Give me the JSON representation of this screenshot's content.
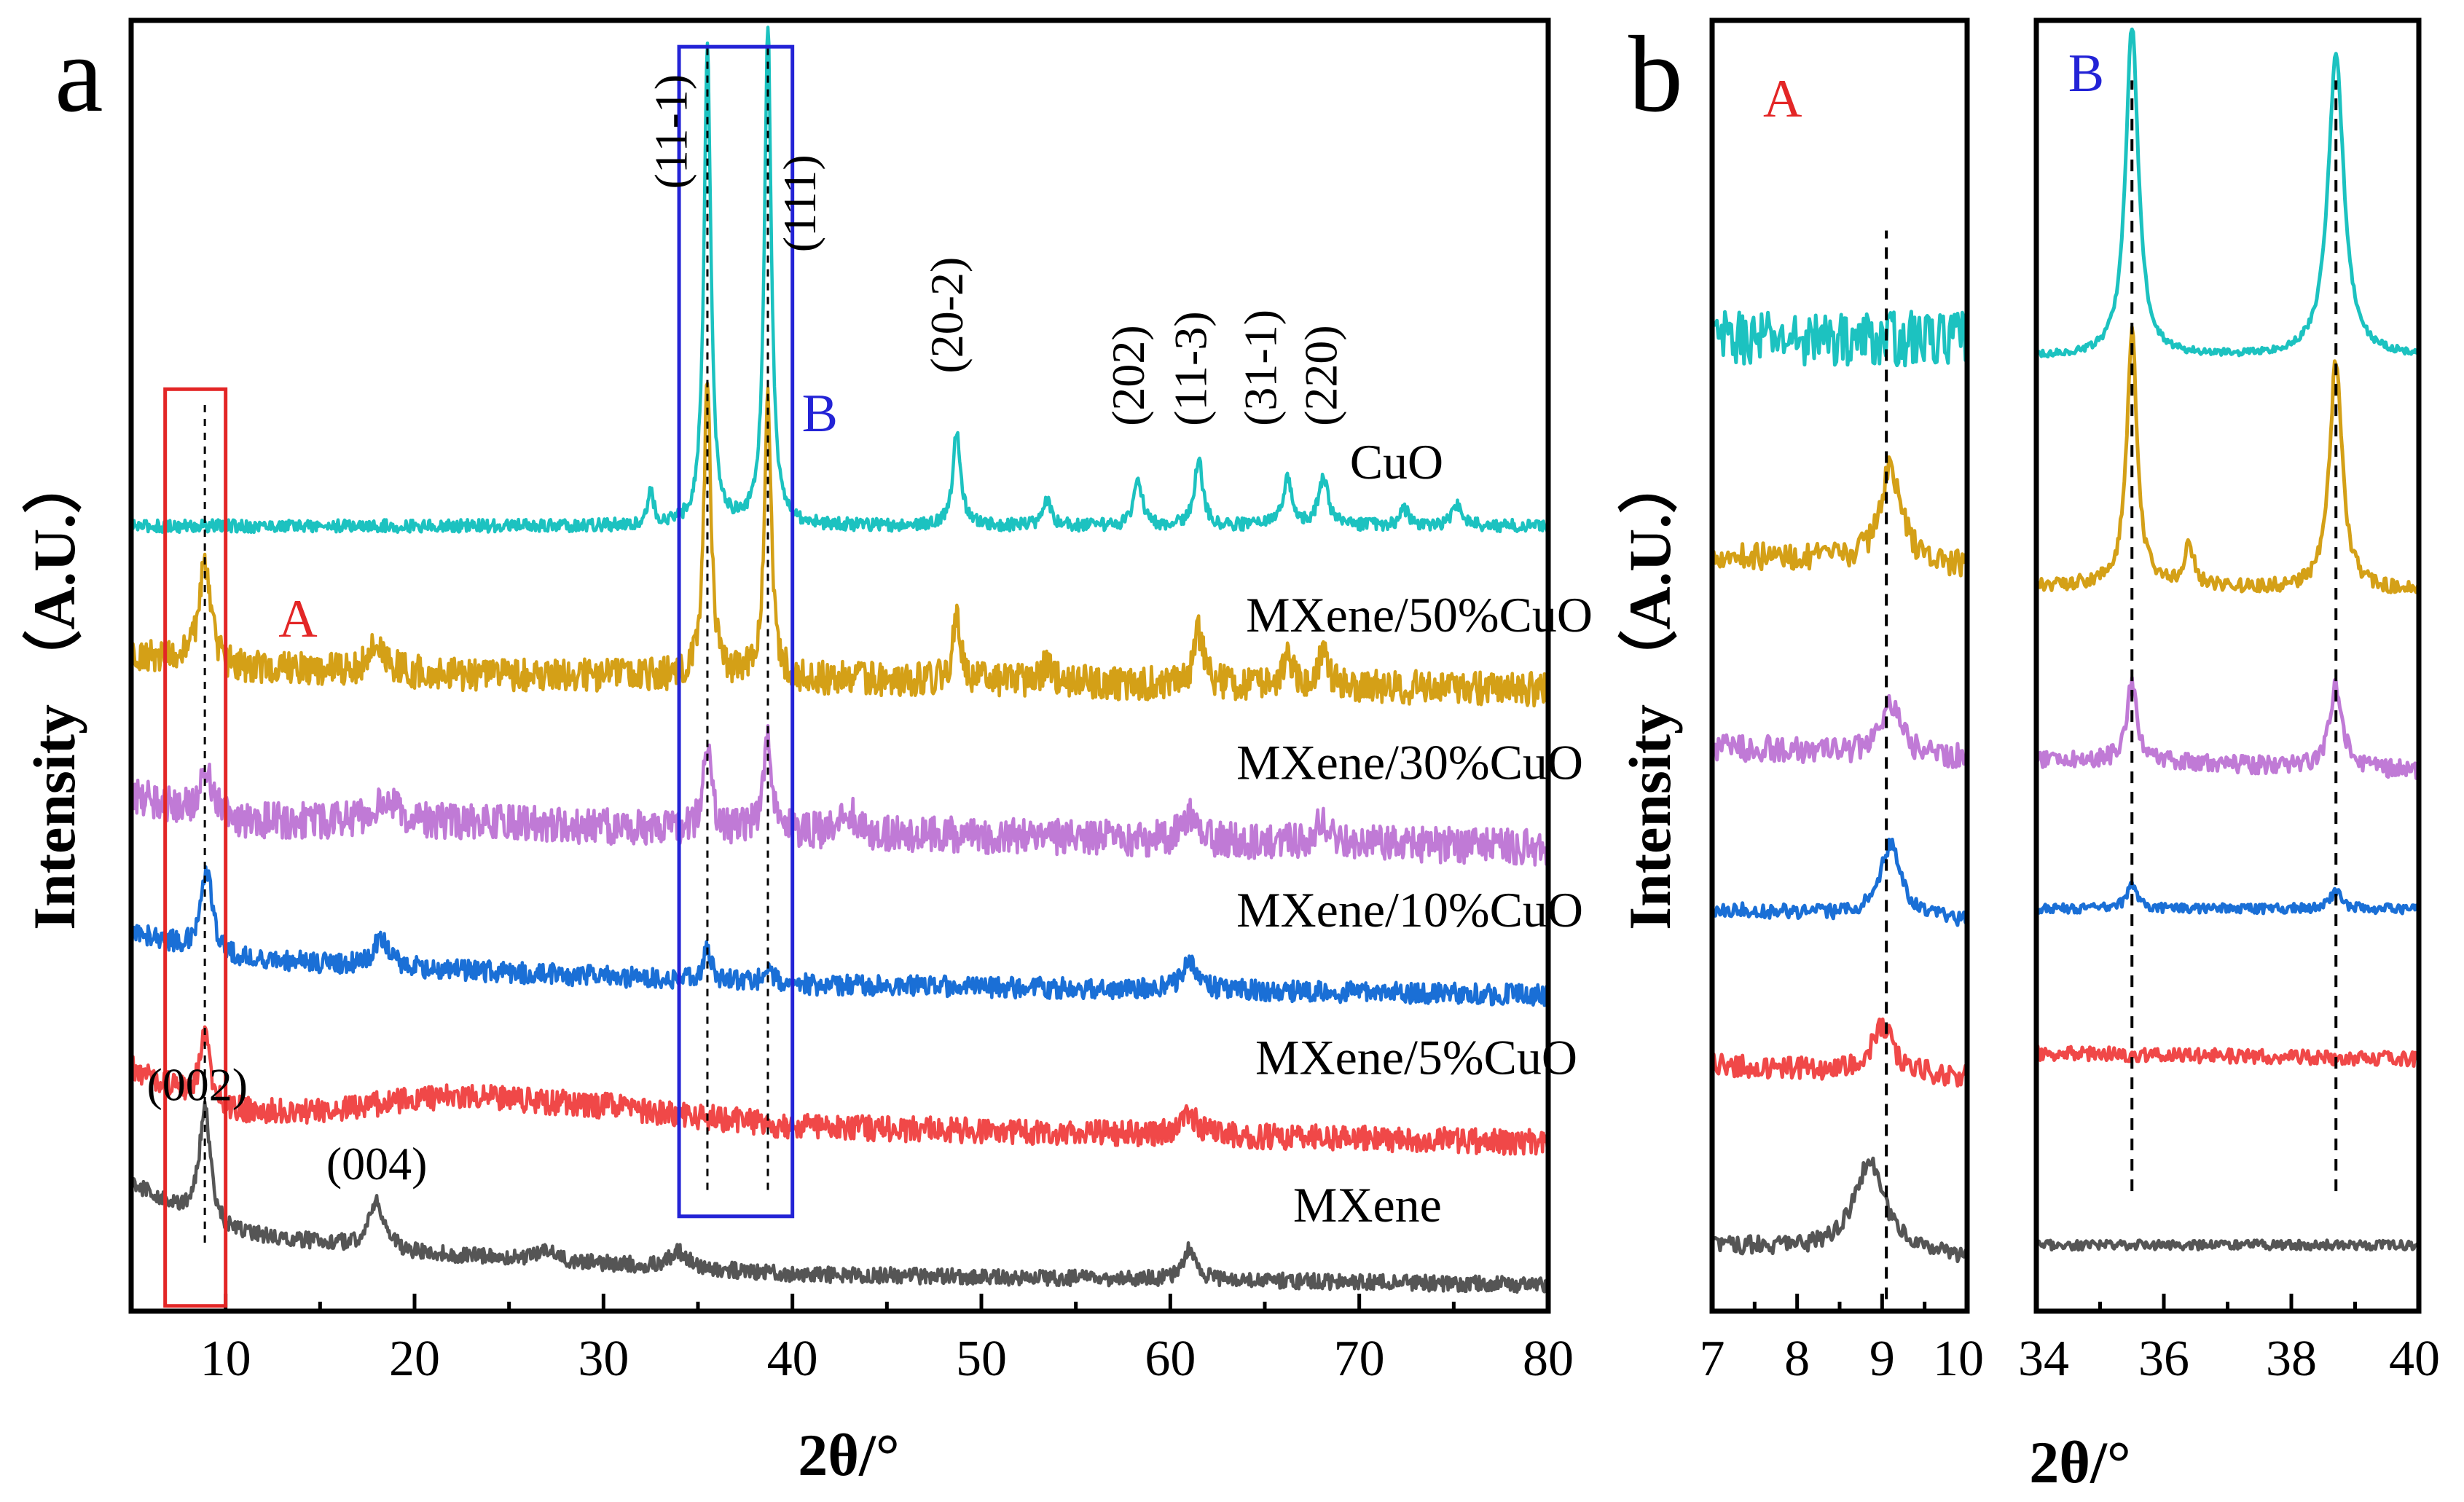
{
  "figure": {
    "panel_a_letter": "a",
    "panel_b_letter": "b",
    "colors": {
      "CuO": "#1cc2c0",
      "MXene/50%CuO": "#d4a017",
      "MXene/30%CuO": "#c07ad6",
      "MXene/10%CuO": "#1a6fd6",
      "MXene/5%CuO": "#f04848",
      "MXene": "#555555",
      "box_A": "#e32626",
      "box_B": "#2323d6"
    }
  },
  "chart_data": [
    {
      "panel": "a",
      "type": "line",
      "xlabel": "2θ/°",
      "ylabel": "Intensity （A.U.）",
      "xlim": [
        5,
        80
      ],
      "xticks": [
        10,
        20,
        30,
        40,
        50,
        60,
        70,
        80
      ],
      "y_units": "arbitrary, stacked with offsets",
      "series": [
        {
          "name": "CuO",
          "offset": 14.2,
          "background": [
            [
              5,
              0.2
            ],
            [
              80,
              0.2
            ]
          ],
          "peaks": [
            [
              32.5,
              0.6,
              0.2
            ],
            [
              35.5,
              9.0,
              0.22
            ],
            [
              38.7,
              9.5,
              0.22
            ],
            [
              48.7,
              1.8,
              0.25
            ],
            [
              53.5,
              0.5,
              0.25
            ],
            [
              58.3,
              0.9,
              0.25
            ],
            [
              61.5,
              1.3,
              0.25
            ],
            [
              66.2,
              0.9,
              0.3
            ],
            [
              68.1,
              0.9,
              0.3
            ],
            [
              72.4,
              0.3,
              0.3
            ],
            [
              75.2,
              0.4,
              0.3
            ]
          ],
          "noise": 0.12
        },
        {
          "name": "MXene/50%CuO",
          "offset": 11.2,
          "background": [
            [
              5,
              0.8
            ],
            [
              10,
              0.5
            ],
            [
              20,
              0.4
            ],
            [
              80,
              0.1
            ]
          ],
          "peaks": [
            [
              8.9,
              2.0,
              0.35
            ],
            [
              18.0,
              0.6,
              0.5
            ],
            [
              35.5,
              5.8,
              0.22
            ],
            [
              38.7,
              5.5,
              0.22
            ],
            [
              48.7,
              1.2,
              0.25
            ],
            [
              53.5,
              0.4,
              0.3
            ],
            [
              61.5,
              1.0,
              0.3
            ],
            [
              66.2,
              0.6,
              0.3
            ],
            [
              68.1,
              0.7,
              0.3
            ]
          ],
          "noise": 0.32
        },
        {
          "name": "MXene/30%CuO",
          "offset": 8.3,
          "background": [
            [
              5,
              1.0
            ],
            [
              10,
              0.5
            ],
            [
              20,
              0.5
            ],
            [
              40,
              0.3
            ],
            [
              80,
              0.0
            ]
          ],
          "peaks": [
            [
              9.0,
              0.9,
              0.4
            ],
            [
              18.5,
              0.4,
              0.6
            ],
            [
              35.5,
              1.6,
              0.25
            ],
            [
              38.7,
              1.8,
              0.25
            ],
            [
              43.0,
              0.4,
              0.4
            ],
            [
              61.0,
              0.5,
              0.4
            ],
            [
              68.0,
              0.4,
              0.4
            ]
          ],
          "noise": 0.34
        },
        {
          "name": "MXene/10%CuO",
          "offset": 5.5,
          "background": [
            [
              5,
              1.2
            ],
            [
              10,
              0.7
            ],
            [
              20,
              0.5
            ],
            [
              40,
              0.2
            ],
            [
              80,
              0.0
            ]
          ],
          "peaks": [
            [
              9.0,
              1.6,
              0.35
            ],
            [
              18.2,
              0.5,
              0.5
            ],
            [
              35.5,
              0.6,
              0.25
            ],
            [
              38.7,
              0.4,
              0.25
            ],
            [
              61.0,
              0.5,
              0.5
            ]
          ],
          "noise": 0.2
        },
        {
          "name": "MXene/5%CuO",
          "offset": 2.7,
          "background": [
            [
              5,
              1.4
            ],
            [
              10,
              0.6
            ],
            [
              15,
              0.6
            ],
            [
              22,
              0.9
            ],
            [
              30,
              0.7
            ],
            [
              40,
              0.3
            ],
            [
              80,
              0.0
            ]
          ],
          "peaks": [
            [
              8.9,
              1.2,
              0.35
            ],
            [
              61.0,
              0.4,
              0.5
            ]
          ],
          "noise": 0.24
        },
        {
          "name": "MXene",
          "offset": 0.0,
          "background": [
            [
              5,
              1.9
            ],
            [
              10,
              1.0
            ],
            [
              20,
              0.6
            ],
            [
              30,
              0.4
            ],
            [
              40,
              0.2
            ],
            [
              80,
              0.0
            ]
          ],
          "peaks": [
            [
              8.9,
              2.2,
              0.35
            ],
            [
              18.0,
              0.9,
              0.5
            ],
            [
              27.0,
              0.2,
              0.6
            ],
            [
              34.0,
              0.3,
              0.6
            ],
            [
              61.0,
              0.6,
              0.4
            ]
          ],
          "noise": 0.15
        }
      ],
      "series_labels": [
        {
          "text": "CuO",
          "x": 69.5,
          "y": 15.3
        },
        {
          "text": "MXene/50%CuO",
          "x": 64.0,
          "y": 12.4
        },
        {
          "text": "MXene/30%CuO",
          "x": 63.5,
          "y": 9.6
        },
        {
          "text": "MXene/10%CuO",
          "x": 63.5,
          "y": 6.8
        },
        {
          "text": "MXene/5%CuO",
          "x": 64.5,
          "y": 4.0
        },
        {
          "text": "MXene",
          "x": 66.5,
          "y": 1.2
        }
      ],
      "annotations": [
        {
          "text": "(002)",
          "x": 8.5,
          "y": 3.5,
          "rotated": false
        },
        {
          "text": "(004)",
          "x": 18.0,
          "y": 2.0,
          "rotated": false
        },
        {
          "text": "(11-1)",
          "x": 34.4,
          "y": 20.8,
          "rotated": true
        },
        {
          "text": "(111)",
          "x": 41.2,
          "y": 19.6,
          "rotated": true
        },
        {
          "text": "(20-2)",
          "x": 49.0,
          "y": 17.3,
          "rotated": true
        },
        {
          "text": "(202)",
          "x": 58.6,
          "y": 16.3,
          "rotated": true
        },
        {
          "text": "(11-3)",
          "x": 61.9,
          "y": 16.3,
          "rotated": true
        },
        {
          "text": "(31-1)",
          "x": 65.6,
          "y": 16.3,
          "rotated": true
        },
        {
          "text": "(220)",
          "x": 68.8,
          "y": 16.3,
          "rotated": true
        }
      ],
      "boxes": [
        {
          "label": "A",
          "x0": 6.8,
          "x1": 10.0,
          "y0": -0.4,
          "y1": 17.0,
          "label_x": 12.8,
          "label_y": 12.3
        },
        {
          "label": "B",
          "x0": 34.0,
          "x1": 40.0,
          "y0": 1.3,
          "y1": 23.5,
          "label_x": 40.5,
          "label_y": 16.2
        }
      ],
      "dashed_lines": [
        {
          "x": 8.9,
          "y0": 0.8,
          "y1": 16.8
        },
        {
          "x": 35.5,
          "y0": 1.8,
          "y1": 23.5
        },
        {
          "x": 38.7,
          "y0": 1.8,
          "y1": 23.5
        }
      ],
      "ylim": [
        -0.5,
        24
      ]
    },
    {
      "panel": "b-A",
      "type": "line",
      "label": "A",
      "xlim": [
        7,
        10
      ],
      "xticks": [
        7,
        8,
        9,
        10
      ],
      "xlabel": "2θ/°",
      "ylabel": "Intensity （A.U.）",
      "ylim": [
        -0.5,
        21
      ],
      "series": [
        {
          "name": "CuO",
          "offset": 15.3,
          "background": [
            [
              7,
              0.4
            ],
            [
              10,
              0.4
            ]
          ],
          "peaks": [],
          "noise": 0.45
        },
        {
          "name": "MXene/50%CuO",
          "offset": 11.6,
          "background": [
            [
              7,
              0.5
            ],
            [
              10,
              0.3
            ]
          ],
          "peaks": [
            [
              9.1,
              1.6,
              0.15
            ]
          ],
          "noise": 0.22
        },
        {
          "name": "MXene/30%CuO",
          "offset": 8.5,
          "background": [
            [
              7,
              0.4
            ],
            [
              10,
              0.2
            ]
          ],
          "peaks": [
            [
              9.1,
              0.8,
              0.15
            ]
          ],
          "noise": 0.22
        },
        {
          "name": "MXene/10%CuO",
          "offset": 5.8,
          "background": [
            [
              7,
              0.4
            ],
            [
              10,
              0.2
            ]
          ],
          "peaks": [
            [
              9.1,
              1.2,
              0.15
            ]
          ],
          "noise": 0.12
        },
        {
          "name": "MXene/5%CuO",
          "offset": 3.2,
          "background": [
            [
              7,
              0.4
            ],
            [
              10,
              0.2
            ]
          ],
          "peaks": [
            [
              9.0,
              0.8,
              0.15
            ]
          ],
          "noise": 0.18
        },
        {
          "name": "MXene",
          "offset": 0.3,
          "background": [
            [
              7,
              0.3
            ],
            [
              10,
              0.1
            ]
          ],
          "peaks": [
            [
              8.85,
              1.5,
              0.22
            ]
          ],
          "noise": 0.15
        }
      ],
      "dashed_lines": [
        {
          "x": 9.05,
          "y0": -0.3,
          "y1": 17.5
        }
      ]
    },
    {
      "panel": "b-B",
      "type": "line",
      "label": "B",
      "xlim": [
        34,
        40
      ],
      "xticks": [
        34,
        36,
        38,
        40
      ],
      "ylim": [
        -0.5,
        21
      ],
      "series": [
        {
          "name": "CuO",
          "offset": 15.3,
          "background": [
            [
              34,
              0.1
            ],
            [
              40,
              0.1
            ]
          ],
          "peaks": [
            [
              35.5,
              5.5,
              0.12
            ],
            [
              38.7,
              5.0,
              0.15
            ]
          ],
          "noise": 0.06
        },
        {
          "name": "MXene/50%CuO",
          "offset": 11.3,
          "background": [
            [
              34,
              0.3
            ],
            [
              40,
              0.2
            ]
          ],
          "peaks": [
            [
              35.5,
              4.2,
              0.1
            ],
            [
              36.4,
              0.7,
              0.08
            ],
            [
              38.7,
              3.8,
              0.12
            ]
          ],
          "noise": 0.12
        },
        {
          "name": "MXene/30%CuO",
          "offset": 8.3,
          "background": [
            [
              34,
              0.4
            ],
            [
              40,
              0.2
            ]
          ],
          "peaks": [
            [
              35.5,
              1.3,
              0.1
            ],
            [
              38.7,
              1.4,
              0.12
            ]
          ],
          "noise": 0.15
        },
        {
          "name": "MXene/10%CuO",
          "offset": 6.1,
          "background": [
            [
              34,
              0.1
            ],
            [
              40,
              0.1
            ]
          ],
          "peaks": [
            [
              35.5,
              0.4,
              0.1
            ],
            [
              38.7,
              0.3,
              0.1
            ]
          ],
          "noise": 0.08
        },
        {
          "name": "MXene/5%CuO",
          "offset": 3.5,
          "background": [
            [
              34,
              0.3
            ],
            [
              40,
              0.2
            ]
          ],
          "peaks": [],
          "noise": 0.12
        },
        {
          "name": "MXene",
          "offset": 0.5,
          "background": [
            [
              34,
              0.1
            ],
            [
              40,
              0.1
            ]
          ],
          "peaks": [],
          "noise": 0.08
        }
      ],
      "dashed_lines": [
        {
          "x": 35.5,
          "y0": 1.5,
          "y1": 20.0
        },
        {
          "x": 38.7,
          "y0": 1.5,
          "y1": 20.0
        }
      ]
    }
  ]
}
